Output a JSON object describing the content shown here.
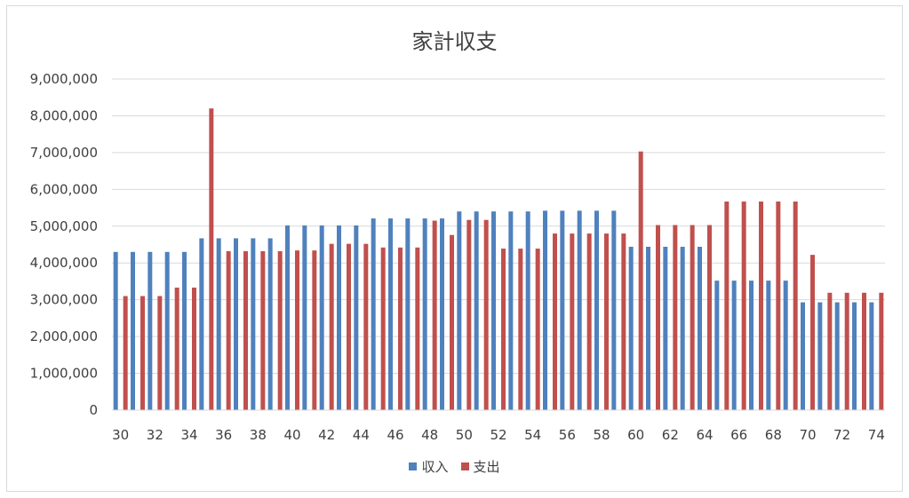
{
  "chart_data": {
    "type": "bar",
    "title": "家計収支",
    "xlabel": "",
    "ylabel": "",
    "ylim": [
      0,
      9000000
    ],
    "y_ticks": [
      "0",
      "1,000,000",
      "2,000,000",
      "3,000,000",
      "4,000,000",
      "5,000,000",
      "6,000,000",
      "7,000,000",
      "8,000,000",
      "9,000,000"
    ],
    "x_tick_labels": [
      "30",
      "32",
      "34",
      "36",
      "38",
      "40",
      "42",
      "44",
      "46",
      "48",
      "50",
      "52",
      "54",
      "56",
      "58",
      "60",
      "62",
      "64",
      "66",
      "68",
      "70",
      "72",
      "74"
    ],
    "grid": true,
    "legend_position": "bottom",
    "categories": [
      "30",
      "31",
      "32",
      "33",
      "34",
      "35",
      "36",
      "37",
      "38",
      "39",
      "40",
      "41",
      "42",
      "43",
      "44",
      "45",
      "46",
      "47",
      "48",
      "49",
      "50",
      "51",
      "52",
      "53",
      "54",
      "55",
      "56",
      "57",
      "58",
      "59",
      "60",
      "61",
      "62",
      "63",
      "64",
      "65",
      "66",
      "67",
      "68",
      "69",
      "70",
      "71",
      "72",
      "73",
      "74"
    ],
    "series": [
      {
        "name": "収入",
        "color": "#4f81bd",
        "values": [
          4300000,
          4300000,
          4300000,
          4300000,
          4300000,
          4670000,
          4670000,
          4670000,
          4670000,
          4670000,
          5020000,
          5020000,
          5020000,
          5020000,
          5020000,
          5210000,
          5210000,
          5210000,
          5210000,
          5210000,
          5400000,
          5400000,
          5400000,
          5400000,
          5400000,
          5420000,
          5420000,
          5420000,
          5420000,
          5420000,
          4440000,
          4440000,
          4440000,
          4440000,
          4440000,
          3520000,
          3520000,
          3520000,
          3520000,
          3520000,
          2930000,
          2930000,
          2930000,
          2930000,
          2930000
        ]
      },
      {
        "name": "支出",
        "color": "#c0504d",
        "values": [
          3100000,
          3100000,
          3100000,
          3330000,
          3330000,
          8200000,
          4320000,
          4320000,
          4320000,
          4320000,
          4340000,
          4340000,
          4520000,
          4520000,
          4520000,
          4420000,
          4420000,
          4420000,
          5150000,
          4760000,
          5170000,
          5170000,
          4390000,
          4390000,
          4390000,
          4800000,
          4800000,
          4800000,
          4800000,
          4800000,
          7030000,
          5030000,
          5030000,
          5030000,
          5030000,
          5670000,
          5670000,
          5670000,
          5670000,
          5670000,
          4220000,
          3190000,
          3190000,
          3190000,
          3190000
        ]
      }
    ]
  }
}
